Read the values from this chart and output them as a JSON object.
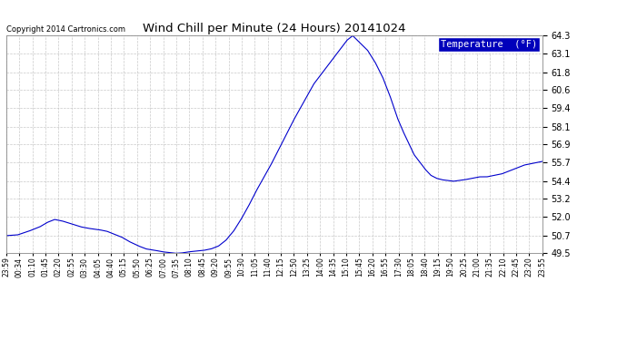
{
  "title": "Wind Chill per Minute (24 Hours) 20141024",
  "copyright": "Copyright 2014 Cartronics.com",
  "legend_label": "Temperature  (°F)",
  "yticks": [
    49.5,
    50.7,
    52.0,
    53.2,
    54.4,
    55.7,
    56.9,
    58.1,
    59.4,
    60.6,
    61.8,
    63.1,
    64.3
  ],
  "ymin": 49.5,
  "ymax": 64.3,
  "line_color": "#0000cc",
  "background_color": "#ffffff",
  "grid_color": "#bbbbbb",
  "xtick_labels": [
    "23:59",
    "00:34",
    "01:10",
    "01:45",
    "02:20",
    "02:55",
    "03:30",
    "04:05",
    "04:40",
    "05:15",
    "05:50",
    "06:25",
    "07:00",
    "07:35",
    "08:10",
    "08:45",
    "09:20",
    "09:55",
    "10:30",
    "11:05",
    "11:40",
    "12:15",
    "12:50",
    "13:25",
    "14:00",
    "14:35",
    "15:10",
    "15:45",
    "16:20",
    "16:55",
    "17:30",
    "18:05",
    "18:40",
    "19:15",
    "19:50",
    "20:25",
    "21:00",
    "21:35",
    "22:10",
    "22:45",
    "23:20",
    "23:55"
  ],
  "control_points_time": [
    0,
    30,
    60,
    90,
    110,
    130,
    150,
    175,
    200,
    220,
    250,
    270,
    290,
    310,
    330,
    355,
    375,
    400,
    420,
    440,
    455,
    470,
    490,
    510,
    530,
    550,
    570,
    590,
    610,
    630,
    650,
    670,
    690,
    710,
    730,
    750,
    770,
    790,
    810,
    825,
    840,
    855,
    870,
    885,
    900,
    915,
    930,
    950,
    970,
    990,
    1010,
    1030,
    1050,
    1065,
    1080,
    1095,
    1110,
    1125,
    1140,
    1155,
    1170,
    1185,
    1200,
    1215,
    1230,
    1250,
    1270,
    1290,
    1310,
    1330,
    1350,
    1370,
    1390,
    1410,
    1430,
    1439
  ],
  "control_points_temp": [
    50.7,
    50.75,
    51.0,
    51.3,
    51.6,
    51.8,
    51.7,
    51.5,
    51.3,
    51.2,
    51.1,
    51.0,
    50.8,
    50.6,
    50.3,
    50.0,
    49.8,
    49.7,
    49.6,
    49.55,
    49.5,
    49.52,
    49.6,
    49.65,
    49.7,
    49.8,
    50.0,
    50.4,
    51.0,
    51.8,
    52.7,
    53.7,
    54.6,
    55.5,
    56.5,
    57.5,
    58.5,
    59.4,
    60.3,
    61.0,
    61.5,
    62.0,
    62.5,
    63.0,
    63.5,
    64.0,
    64.3,
    63.8,
    63.3,
    62.5,
    61.5,
    60.2,
    58.7,
    57.8,
    57.0,
    56.2,
    55.7,
    55.2,
    54.8,
    54.6,
    54.5,
    54.45,
    54.4,
    54.45,
    54.5,
    54.6,
    54.7,
    54.7,
    54.8,
    54.9,
    55.1,
    55.3,
    55.5,
    55.6,
    55.7,
    55.75
  ]
}
